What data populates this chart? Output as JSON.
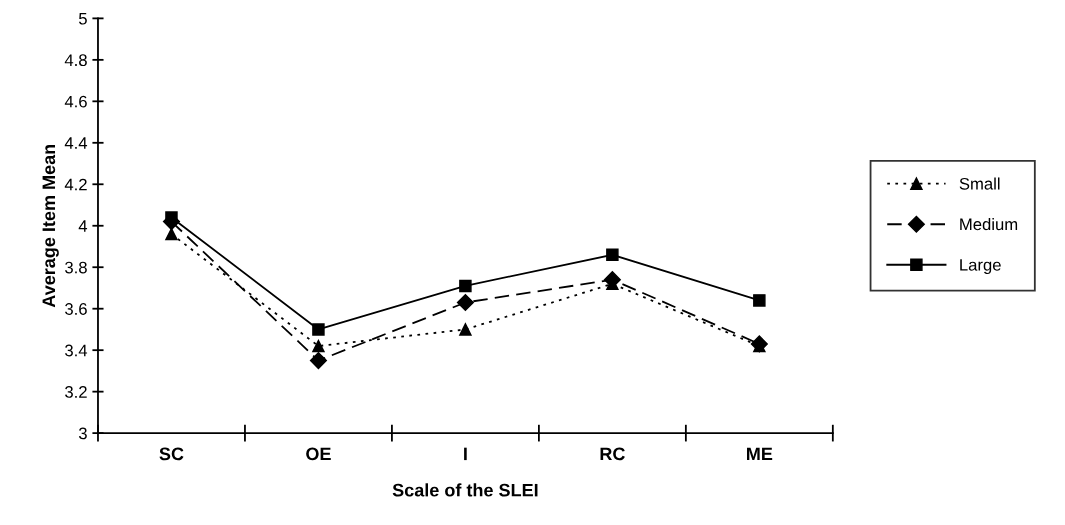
{
  "chart_data": {
    "type": "line",
    "xlabel": "Scale of the SLEI",
    "ylabel": "Average Item Mean",
    "categories": [
      "SC",
      "OE",
      "I",
      "RC",
      "ME"
    ],
    "series": [
      {
        "name": "Small",
        "color": "#000000",
        "marker": "triangle",
        "line_style": "dotted",
        "values": [
          3.96,
          3.42,
          3.5,
          3.72,
          3.42
        ]
      },
      {
        "name": "Medium",
        "color": "#000000",
        "marker": "diamond",
        "line_style": "dashed",
        "values": [
          4.02,
          3.35,
          3.63,
          3.74,
          3.43
        ]
      },
      {
        "name": "Large",
        "color": "#000000",
        "marker": "square",
        "line_style": "solid",
        "values": [
          4.04,
          3.5,
          3.71,
          3.86,
          3.64
        ]
      }
    ],
    "ylim": [
      3,
      5
    ],
    "yticks": [
      3,
      3.2,
      3.4,
      3.6,
      3.8,
      4,
      4.2,
      4.4,
      4.6,
      4.8,
      5
    ],
    "grid": false,
    "legend": "right"
  }
}
